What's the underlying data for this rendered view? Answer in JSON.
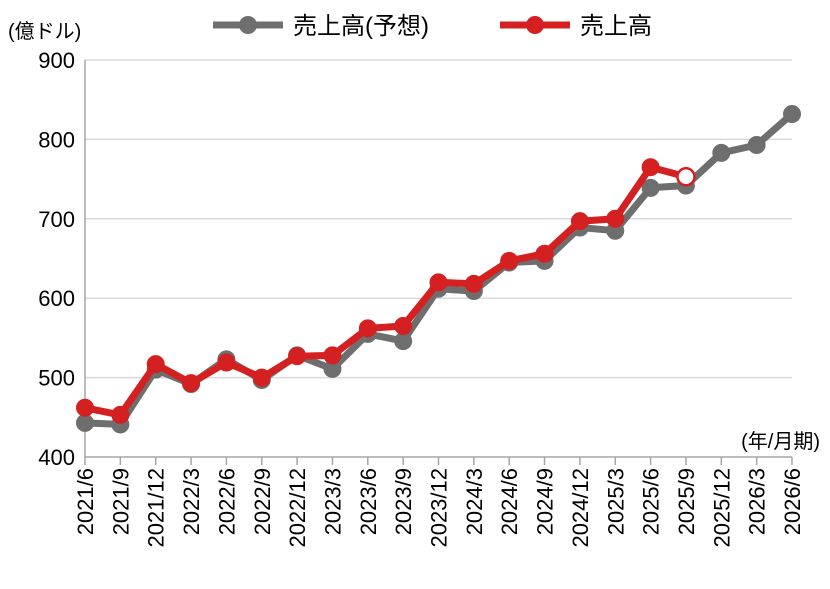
{
  "chart_data": {
    "type": "line",
    "title": "",
    "ylabel": "(億ドル)",
    "xlabel": "(年/月期)",
    "ylim": [
      400,
      900
    ],
    "yticks": [
      400,
      500,
      600,
      700,
      800,
      900
    ],
    "grid": true,
    "legend_position": "top",
    "categories": [
      "2021/6",
      "2021/9",
      "2021/12",
      "2022/3",
      "2022/6",
      "2022/9",
      "2022/12",
      "2023/3",
      "2023/6",
      "2023/9",
      "2023/12",
      "2024/3",
      "2024/6",
      "2024/9",
      "2024/12",
      "2025/3",
      "2025/6",
      "2025/9",
      "2025/12",
      "2026/3",
      "2026/6"
    ],
    "series": [
      {
        "name": "売上高(予想)",
        "color": "#6e6e6e",
        "values": [
          443,
          441,
          510,
          492,
          523,
          497,
          528,
          511,
          555,
          546,
          612,
          609,
          645,
          647,
          689,
          685,
          739,
          742,
          783,
          793,
          832
        ]
      },
      {
        "name": "売上高",
        "color": "#d42020",
        "values": [
          462,
          453,
          517,
          493,
          519,
          500,
          527,
          528,
          562,
          565,
          620,
          618,
          647,
          656,
          697,
          700,
          765,
          753,
          null,
          null,
          null
        ],
        "open_last": true
      }
    ]
  }
}
